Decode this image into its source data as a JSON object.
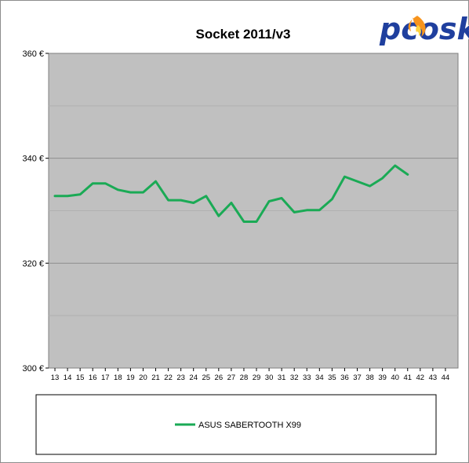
{
  "chart_data": {
    "type": "line",
    "title": "Socket 2011/v3",
    "x": [
      13,
      14,
      15,
      16,
      17,
      18,
      19,
      20,
      21,
      22,
      23,
      24,
      25,
      26,
      27,
      28,
      29,
      30,
      31,
      32,
      33,
      34,
      35,
      36,
      37,
      38,
      39,
      40,
      41,
      42,
      43,
      44
    ],
    "x_tick_labels": [
      "13",
      "14",
      "15",
      "16",
      "17",
      "18",
      "19",
      "20",
      "21",
      "22",
      "23",
      "24",
      "25",
      "26",
      "27",
      "28",
      "29",
      "30",
      "31",
      "32",
      "33",
      "34",
      "35",
      "36",
      "37",
      "38",
      "39",
      "40",
      "41",
      "42",
      "43",
      "44"
    ],
    "y_tick_labels": [
      "360 €",
      "340 €",
      "320 €",
      "300 €"
    ],
    "y_ticks": [
      360,
      340,
      320,
      300
    ],
    "ylim": [
      300,
      360
    ],
    "xlim": [
      13,
      44
    ],
    "grid": true,
    "legend_position": "bottom",
    "series": [
      {
        "name": "ASUS SABERTOOTH X99",
        "color": "#1aaa55",
        "x": [
          13,
          14,
          15,
          16,
          17,
          18,
          19,
          20,
          21,
          22,
          23,
          24,
          25,
          26,
          27,
          28,
          29,
          30,
          31,
          32,
          33,
          34,
          35,
          36,
          37,
          38,
          39,
          40,
          41
        ],
        "values": [
          332.8,
          332.8,
          333.1,
          335.2,
          335.2,
          334.0,
          333.5,
          333.5,
          335.6,
          332.0,
          332.0,
          331.5,
          332.8,
          329.0,
          331.5,
          327.9,
          327.9,
          331.8,
          332.4,
          329.7,
          330.1,
          330.1,
          332.2,
          336.5,
          335.6,
          334.7,
          336.2,
          338.6,
          336.9
        ]
      }
    ]
  },
  "logo": {
    "text": "pcosk",
    "icon": "flame-icon"
  },
  "colors": {
    "plot_background": "#c0c0c0",
    "grid": "#a8a8a8",
    "series": "#1aaa55",
    "logo": "#1f3f9e",
    "flame": "#f7941d"
  }
}
